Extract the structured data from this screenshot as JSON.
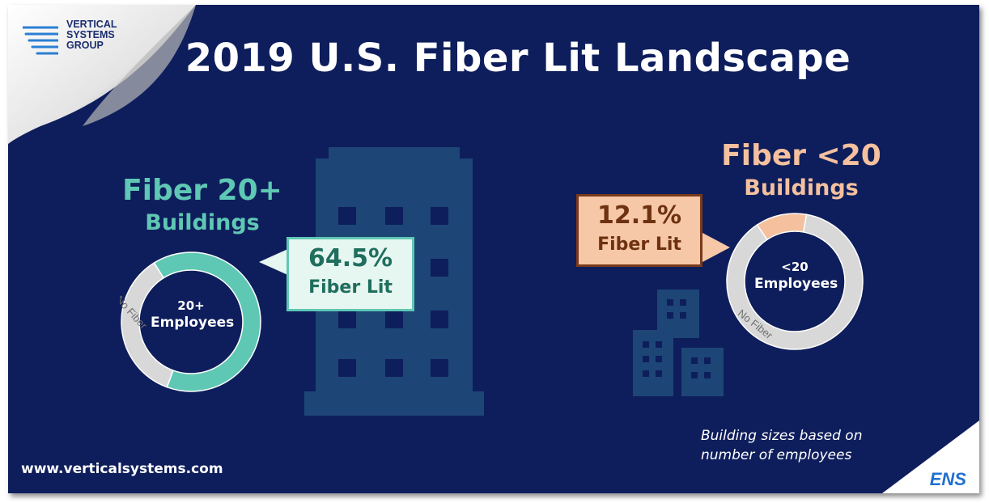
{
  "title": "2019 U.S. Fiber Lit Landscape",
  "logo": {
    "line1": "VERTICAL",
    "line2": "SYSTEMS",
    "line3": "GROUP"
  },
  "colors": {
    "background": "#0e1e5c",
    "teal": "#5fc8b4",
    "peach": "#f4c09e",
    "no_fiber": "#d8d8d8",
    "building": "#1d4575"
  },
  "chart_data": [
    {
      "type": "pie",
      "title": "Fiber 20+ Buildings",
      "title_line1": "Fiber 20+",
      "title_line2": "Buildings",
      "center_line1": "20+",
      "center_line2": "Employees",
      "slices": [
        {
          "label": "Fiber Lit",
          "value": 64.5,
          "color": "#5fc8b4"
        },
        {
          "label": "No Fiber",
          "value": 35.5,
          "color": "#d8d8d8"
        }
      ],
      "callout_value": "64.5%",
      "callout_label": "Fiber Lit"
    },
    {
      "type": "pie",
      "title": "Fiber <20 Buildings",
      "title_line1": "Fiber <20",
      "title_line2": "Buildings",
      "center_line1": "<20",
      "center_line2": "Employees",
      "slices": [
        {
          "label": "Fiber Lit",
          "value": 12.1,
          "color": "#f4c09e"
        },
        {
          "label": "No Fiber",
          "value": 87.9,
          "color": "#d8d8d8"
        }
      ],
      "callout_value": "12.1%",
      "callout_label": "Fiber Lit"
    }
  ],
  "footnote_line1": "Building sizes based on",
  "footnote_line2": "number of employees",
  "website": "www.verticalsystems.com",
  "ens_logo": "ENS"
}
